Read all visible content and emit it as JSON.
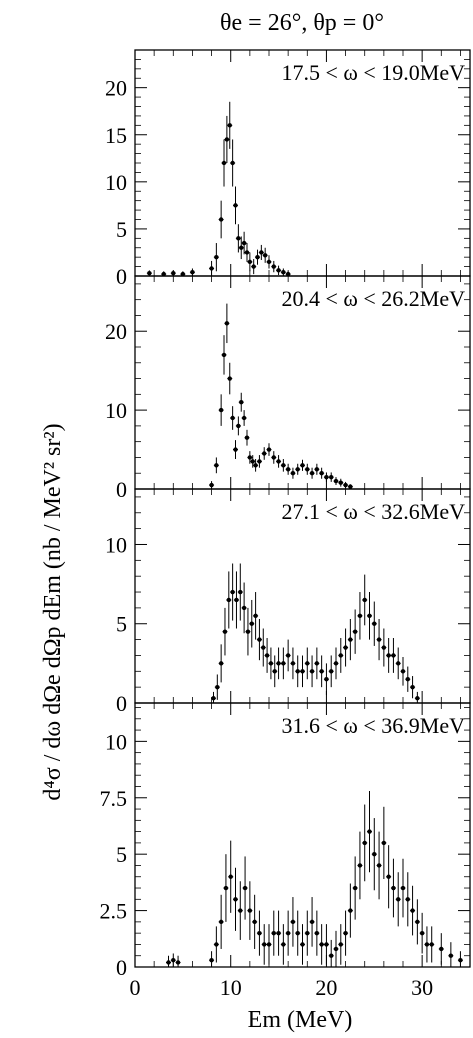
{
  "figure": {
    "header": "θe = 26°, θp = 0°",
    "ylabel": "d⁴σ / dω dΩe dΩp dEm (nb / MeV² sr²)",
    "xlabel": "Em (MeV)"
  },
  "chart_data": [
    {
      "type": "scatter",
      "annotation": "17.5 < ω < 19.0MeV",
      "xlim": [
        0,
        35
      ],
      "ylim": [
        0,
        24
      ],
      "yticks": [
        0,
        5,
        10,
        15,
        20
      ],
      "series": [
        {
          "x": [
            1.5,
            3.0,
            4.0,
            5.0,
            6.0,
            8.0,
            8.5,
            9.0,
            9.3,
            9.6,
            9.9,
            10.2,
            10.5,
            10.8,
            11.1,
            11.4,
            11.7,
            12.0,
            12.4,
            12.8,
            13.2,
            13.6,
            14.0,
            14.5,
            15.0,
            15.5,
            16.0
          ],
          "y": [
            0.3,
            0.2,
            0.3,
            0.2,
            0.4,
            0.8,
            2.0,
            6.0,
            12.0,
            14.5,
            16.0,
            12.0,
            7.5,
            4.0,
            3.0,
            3.5,
            2.5,
            1.5,
            1.0,
            2.0,
            2.5,
            2.2,
            1.5,
            1.0,
            0.6,
            0.4,
            0.2
          ],
          "err": [
            0.3,
            0.3,
            0.3,
            0.3,
            0.4,
            0.8,
            1.5,
            2.0,
            2.5,
            2.5,
            2.5,
            2.5,
            2.0,
            1.5,
            1.2,
            1.2,
            1.0,
            1.0,
            0.8,
            0.8,
            0.8,
            0.8,
            0.7,
            0.6,
            0.5,
            0.4,
            0.3
          ]
        }
      ]
    },
    {
      "type": "scatter",
      "annotation": "20.4 < ω < 26.2MeV",
      "xlim": [
        0,
        35
      ],
      "ylim": [
        0,
        27
      ],
      "yticks": [
        0,
        10,
        20
      ],
      "series": [
        {
          "x": [
            8.0,
            8.5,
            9.0,
            9.3,
            9.6,
            9.9,
            10.2,
            10.5,
            10.8,
            11.1,
            11.4,
            11.7,
            12.0,
            12.3,
            12.6,
            13.0,
            13.5,
            14.0,
            14.5,
            15.0,
            15.5,
            16.0,
            16.5,
            17.0,
            17.5,
            18.0,
            18.5,
            19.0,
            19.5,
            20.0,
            20.5,
            21.0,
            21.5,
            22.0,
            22.5
          ],
          "y": [
            0.5,
            3.0,
            10.0,
            17.0,
            21.0,
            14.0,
            9.0,
            5.0,
            8.0,
            11.0,
            9.0,
            6.5,
            4.0,
            3.5,
            3.0,
            3.5,
            4.5,
            5.0,
            4.0,
            3.5,
            3.0,
            2.5,
            2.0,
            2.5,
            3.0,
            2.5,
            2.0,
            2.5,
            2.0,
            1.5,
            1.5,
            1.0,
            0.8,
            0.5,
            0.3
          ],
          "err": [
            0.5,
            1.0,
            2.0,
            2.5,
            2.5,
            2.0,
            1.5,
            1.2,
            1.2,
            1.2,
            1.0,
            1.0,
            0.8,
            0.8,
            0.8,
            0.8,
            0.8,
            0.8,
            0.8,
            0.8,
            0.8,
            0.7,
            0.7,
            0.7,
            0.7,
            0.7,
            0.7,
            0.7,
            0.7,
            0.6,
            0.6,
            0.5,
            0.5,
            0.4,
            0.3
          ]
        }
      ]
    },
    {
      "type": "scatter",
      "annotation": "27.1 < ω < 32.6MeV",
      "xlim": [
        0,
        35
      ],
      "ylim": [
        0,
        13.5
      ],
      "yticks": [
        0,
        5,
        10
      ],
      "series": [
        {
          "x": [
            8.2,
            8.6,
            9.0,
            9.4,
            9.8,
            10.2,
            10.6,
            11.0,
            11.4,
            11.8,
            12.2,
            12.6,
            13.0,
            13.4,
            13.8,
            14.2,
            14.6,
            15.0,
            15.5,
            16.0,
            16.5,
            17.0,
            17.5,
            18.0,
            18.5,
            19.0,
            19.5,
            20.0,
            20.5,
            21.0,
            21.5,
            22.0,
            22.5,
            23.0,
            23.5,
            24.0,
            24.5,
            25.0,
            25.5,
            26.0,
            26.5,
            27.0,
            27.5,
            28.0,
            28.5,
            29.0,
            29.5
          ],
          "y": [
            0.3,
            1.0,
            2.5,
            4.5,
            6.5,
            7.0,
            6.5,
            7.0,
            6.0,
            4.5,
            5.0,
            5.5,
            4.0,
            3.5,
            3.0,
            2.5,
            2.0,
            2.5,
            2.5,
            3.0,
            2.5,
            2.0,
            2.0,
            2.5,
            2.0,
            2.5,
            2.0,
            1.5,
            2.0,
            2.5,
            3.0,
            3.5,
            4.0,
            4.5,
            5.5,
            6.5,
            5.5,
            5.0,
            4.0,
            3.5,
            3.0,
            3.0,
            2.5,
            2.0,
            1.5,
            1.0,
            0.3
          ],
          "err": [
            0.4,
            0.8,
            1.2,
            1.5,
            1.8,
            1.8,
            1.8,
            1.8,
            1.6,
            1.5,
            1.5,
            1.5,
            1.3,
            1.2,
            1.1,
            1.0,
            1.0,
            1.0,
            1.0,
            1.0,
            1.0,
            1.0,
            1.0,
            1.0,
            1.0,
            1.0,
            1.0,
            1.0,
            1.0,
            1.0,
            1.1,
            1.2,
            1.3,
            1.4,
            1.5,
            1.6,
            1.5,
            1.4,
            1.3,
            1.2,
            1.1,
            1.1,
            1.0,
            0.9,
            0.8,
            0.7,
            0.4
          ]
        }
      ]
    },
    {
      "type": "scatter",
      "annotation": "31.6 < ω < 36.9MeV",
      "xlim": [
        0,
        35
      ],
      "ylim": [
        0,
        11.7
      ],
      "yticks": [
        0,
        2.5,
        5,
        7.5,
        10
      ],
      "series": [
        {
          "x": [
            3.5,
            4.0,
            4.5,
            8.0,
            8.5,
            9.0,
            9.5,
            10.0,
            10.5,
            11.0,
            11.5,
            12.0,
            12.5,
            13.0,
            13.5,
            14.0,
            14.5,
            15.0,
            15.5,
            16.0,
            16.5,
            17.0,
            17.5,
            18.0,
            18.5,
            19.0,
            19.5,
            20.0,
            20.5,
            21.0,
            21.5,
            22.0,
            22.5,
            23.0,
            23.5,
            24.0,
            24.5,
            25.0,
            25.5,
            26.0,
            26.5,
            27.0,
            27.5,
            28.0,
            28.5,
            29.0,
            29.5,
            30.0,
            30.5,
            31.0,
            32.0,
            33.0,
            34.0
          ],
          "y": [
            0.2,
            0.3,
            0.2,
            0.3,
            1.0,
            2.0,
            3.5,
            4.0,
            3.0,
            2.5,
            3.5,
            2.5,
            2.0,
            1.5,
            1.0,
            1.0,
            1.5,
            1.5,
            1.0,
            1.5,
            2.0,
            1.5,
            1.0,
            1.5,
            2.0,
            1.5,
            1.0,
            1.0,
            0.5,
            0.8,
            1.0,
            1.5,
            2.5,
            3.5,
            4.5,
            5.5,
            6.0,
            5.0,
            4.5,
            5.5,
            4.0,
            3.5,
            3.0,
            3.5,
            3.0,
            2.5,
            2.0,
            1.5,
            1.0,
            1.0,
            0.8,
            0.5,
            0.3
          ],
          "err": [
            0.3,
            0.3,
            0.3,
            0.4,
            0.8,
            1.2,
            1.5,
            1.6,
            1.4,
            1.3,
            1.4,
            1.3,
            1.2,
            1.0,
            0.9,
            0.9,
            1.0,
            1.0,
            0.9,
            1.0,
            1.1,
            1.0,
            0.9,
            1.0,
            1.1,
            1.0,
            0.9,
            0.9,
            0.7,
            0.8,
            0.9,
            1.0,
            1.2,
            1.4,
            1.5,
            1.7,
            1.8,
            1.6,
            1.5,
            1.6,
            1.4,
            1.3,
            1.2,
            1.3,
            1.2,
            1.1,
            1.0,
            0.9,
            0.8,
            0.8,
            0.7,
            0.6,
            0.4
          ]
        }
      ]
    }
  ],
  "xaxis": {
    "ticks": [
      0,
      10,
      20,
      30
    ]
  }
}
